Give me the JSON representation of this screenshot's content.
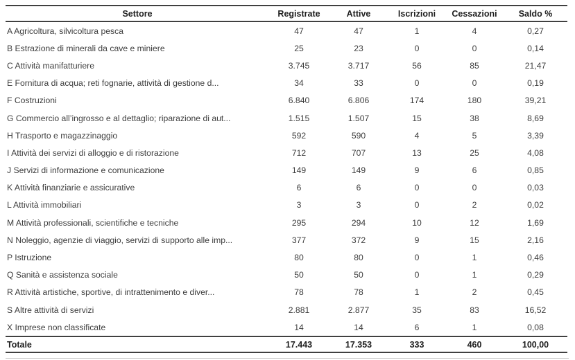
{
  "table": {
    "columns": [
      "Settore",
      "Registrate",
      "Attive",
      "Iscrizioni",
      "Cessazioni",
      "Saldo %"
    ],
    "rows": [
      {
        "settore": "A Agricoltura, silvicoltura pesca",
        "values": [
          "47",
          "47",
          "1",
          "4",
          "0,27"
        ]
      },
      {
        "settore": "B Estrazione di minerali da cave e miniere",
        "values": [
          "25",
          "23",
          "0",
          "0",
          "0,14"
        ]
      },
      {
        "settore": "C Attività manifatturiere",
        "values": [
          "3.745",
          "3.717",
          "56",
          "85",
          "21,47"
        ]
      },
      {
        "settore": "E Fornitura di acqua; reti fognarie, attività di gestione d...",
        "values": [
          "34",
          "33",
          "0",
          "0",
          "0,19"
        ]
      },
      {
        "settore": "F Costruzioni",
        "values": [
          "6.840",
          "6.806",
          "174",
          "180",
          "39,21"
        ]
      },
      {
        "settore": "G Commercio all’ingrosso e al dettaglio; riparazione di aut...",
        "values": [
          "1.515",
          "1.507",
          "15",
          "38",
          "8,69"
        ]
      },
      {
        "settore": "H Trasporto e magazzinaggio",
        "values": [
          "592",
          "590",
          "4",
          "5",
          "3,39"
        ]
      },
      {
        "settore": "I Attività dei servizi di alloggio e di ristorazione",
        "values": [
          "712",
          "707",
          "13",
          "25",
          "4,08"
        ]
      },
      {
        "settore": "J Servizi di informazione e comunicazione",
        "values": [
          "149",
          "149",
          "9",
          "6",
          "0,85"
        ]
      },
      {
        "settore": "K Attività finanziarie e assicurative",
        "values": [
          "6",
          "6",
          "0",
          "0",
          "0,03"
        ]
      },
      {
        "settore": "L Attività immobiliari",
        "values": [
          "3",
          "3",
          "0",
          "2",
          "0,02"
        ]
      },
      {
        "settore": "M Attività professionali, scientifiche e tecniche",
        "values": [
          "295",
          "294",
          "10",
          "12",
          "1,69"
        ]
      },
      {
        "settore": "N Noleggio, agenzie di viaggio, servizi di supporto alle imp...",
        "values": [
          "377",
          "372",
          "9",
          "15",
          "2,16"
        ]
      },
      {
        "settore": "P Istruzione",
        "values": [
          "80",
          "80",
          "0",
          "1",
          "0,46"
        ]
      },
      {
        "settore": "Q Sanità e assistenza sociale",
        "values": [
          "50",
          "50",
          "0",
          "1",
          "0,29"
        ]
      },
      {
        "settore": "R Attività artistiche, sportive, di intrattenimento e diver...",
        "values": [
          "78",
          "78",
          "1",
          "2",
          "0,45"
        ]
      },
      {
        "settore": "S Altre attività di servizi",
        "values": [
          "2.881",
          "2.877",
          "35",
          "83",
          "16,52"
        ]
      },
      {
        "settore": "X Imprese non classificate",
        "values": [
          "14",
          "14",
          "6",
          "1",
          "0,08"
        ]
      }
    ],
    "total": {
      "label": "Totale",
      "values": [
        "17.443",
        "17.353",
        "333",
        "460",
        "100,00"
      ]
    }
  },
  "colors": {
    "rule": "#404040",
    "header_text": "#1f1f1f",
    "body_text": "#3d3d3d"
  }
}
